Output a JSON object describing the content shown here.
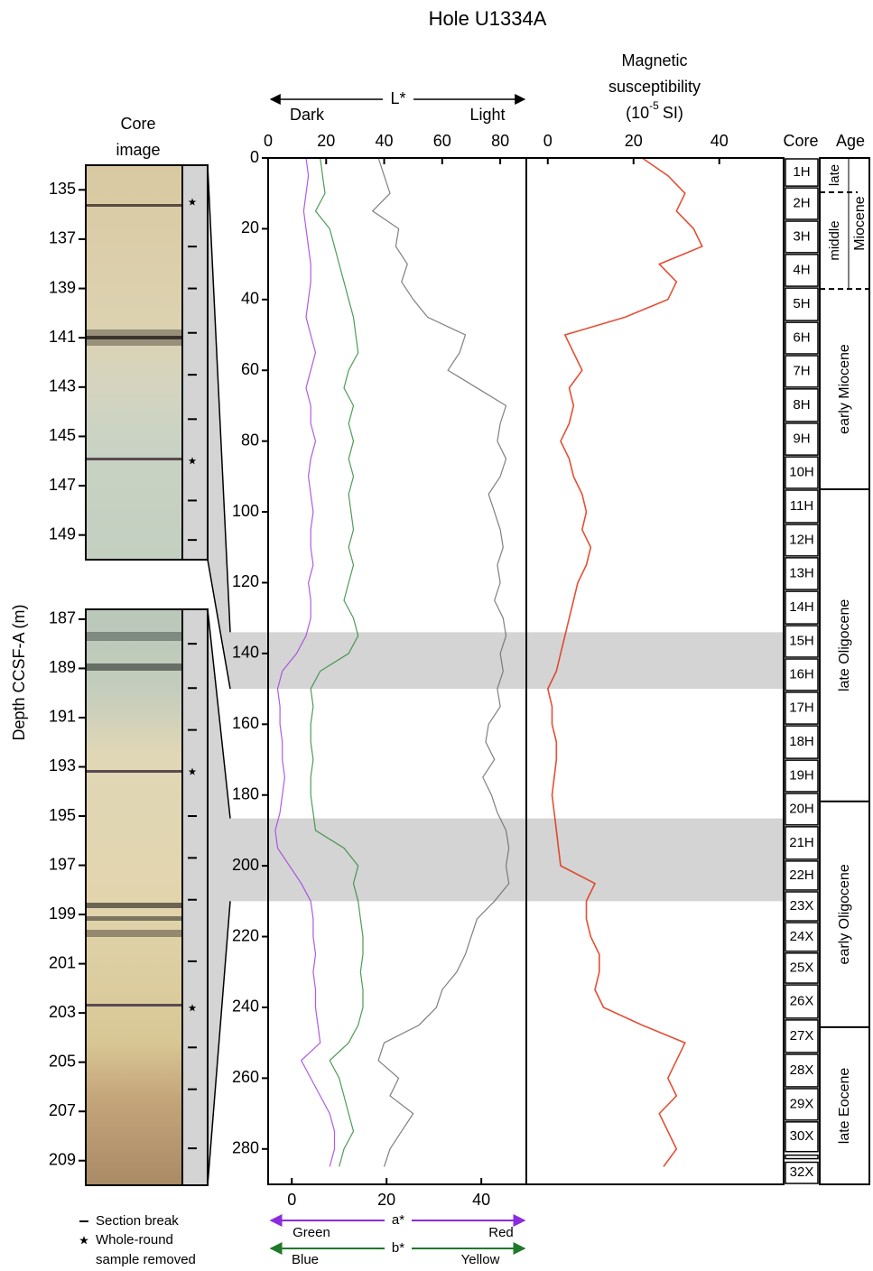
{
  "chart_data": {
    "type": "line",
    "title": "Hole U1334A",
    "ylabel": "Depth CCSF-A (m)",
    "ylim": [
      0,
      290
    ],
    "yticks": [
      0,
      20,
      40,
      60,
      80,
      100,
      120,
      140,
      160,
      180,
      200,
      220,
      240,
      260,
      280
    ],
    "depth": [
      0,
      5,
      10,
      15,
      20,
      25,
      30,
      35,
      40,
      45,
      50,
      55,
      60,
      65,
      70,
      75,
      80,
      85,
      90,
      95,
      100,
      105,
      110,
      115,
      120,
      125,
      130,
      135,
      140,
      145,
      150,
      155,
      160,
      165,
      170,
      175,
      180,
      185,
      190,
      195,
      200,
      205,
      210,
      215,
      220,
      225,
      230,
      235,
      240,
      245,
      250,
      255,
      260,
      265,
      270,
      275,
      280,
      285
    ],
    "lstar": {
      "label": "L*",
      "dark": "Dark",
      "light": "Light",
      "xlim": [
        0,
        89
      ],
      "xticks": [
        0,
        20,
        40,
        60,
        80
      ]
    },
    "ab": {
      "xlim": [
        -5,
        49.5
      ],
      "xticks": [
        0,
        20,
        40
      ],
      "a": "a*",
      "green": "Green",
      "red": "Red",
      "b": "b*",
      "blue": "Blue",
      "yellow": "Yellow"
    },
    "mag": {
      "title": [
        "Magnetic",
        "susceptibility"
      ],
      "unit": [
        "(10",
        "-5",
        "SI)"
      ],
      "xlim": [
        -5,
        55
      ],
      "xticks": [
        0,
        20,
        40
      ]
    },
    "series": [
      {
        "axis": "lstar",
        "color": "#6a6a6a",
        "values": [
          38,
          40,
          42,
          36,
          45,
          44,
          48,
          46,
          50,
          55,
          68,
          66,
          62,
          72,
          82,
          80,
          79,
          82,
          80,
          76,
          78,
          80,
          81,
          79,
          80,
          78,
          81,
          82,
          80,
          81,
          79,
          80,
          76,
          75,
          78,
          74,
          77,
          79,
          82,
          83,
          82,
          83,
          78,
          72,
          70,
          68,
          65,
          60,
          58,
          52,
          40,
          38,
          45,
          42,
          50,
          46,
          42,
          40
        ]
      },
      {
        "axis": "ab",
        "color": "#a040e0",
        "values": [
          3,
          3.5,
          3,
          2.5,
          3,
          3.5,
          4,
          4,
          3.5,
          3,
          4,
          5,
          4,
          3,
          4,
          4,
          5,
          4,
          3.5,
          4,
          4.5,
          4,
          4,
          4.5,
          3.5,
          4,
          4,
          3,
          1,
          -2,
          -3,
          -2.5,
          -2.5,
          -2,
          -2,
          -1.5,
          -2,
          -2.5,
          -3.5,
          -3,
          -0.5,
          2,
          4,
          4.5,
          4.5,
          5,
          4.5,
          5,
          5,
          5.5,
          6,
          2,
          4,
          6,
          8,
          9,
          9,
          8
        ]
      },
      {
        "axis": "ab",
        "color": "#2e8b3a",
        "values": [
          6,
          6.5,
          7,
          5,
          8,
          9,
          10,
          11,
          12,
          13,
          13.5,
          14,
          12,
          11,
          13,
          12,
          13,
          12,
          13,
          12,
          12.5,
          13,
          12,
          13,
          12,
          11,
          13,
          14,
          12,
          6,
          4,
          4.5,
          4,
          4,
          4.5,
          4,
          4,
          4.5,
          5,
          11,
          14,
          13,
          14,
          14.5,
          15,
          15,
          14.5,
          15,
          15,
          14,
          12,
          8,
          10,
          11,
          12,
          13,
          11,
          10
        ]
      },
      {
        "axis": "mag",
        "color": "#e03010",
        "values": [
          22,
          28,
          32,
          30,
          34,
          36,
          26,
          30,
          28,
          18,
          4,
          6,
          8,
          5,
          6,
          5,
          3,
          5,
          6,
          8,
          9,
          8,
          10,
          9,
          7,
          6,
          5,
          4,
          3,
          2,
          0,
          1,
          1,
          2,
          2,
          1.5,
          1,
          1.5,
          2,
          2.5,
          3,
          11,
          9,
          9,
          10,
          12,
          12,
          11,
          13,
          22,
          32,
          30,
          28,
          30,
          26,
          28,
          30,
          27
        ]
      }
    ],
    "core_image": {
      "title": [
        "Core",
        "image"
      ],
      "sections": [
        {
          "top": 134.0,
          "bottom": 150.0,
          "yticks": [
            135,
            137,
            139,
            141,
            143,
            145,
            147,
            149
          ],
          "section_breaks": [
            137.3,
            139.0,
            140.8,
            142.5,
            144.3,
            147.6,
            149.2
          ],
          "samples": [
            135.5,
            146.0
          ]
        },
        {
          "top": 186.6,
          "bottom": 210.0,
          "yticks": [
            187,
            189,
            191,
            193,
            195,
            197,
            199,
            201,
            203,
            205,
            207,
            209
          ],
          "section_breaks": [
            188.0,
            189.8,
            191.5,
            195.0,
            196.7,
            198.4,
            200.9,
            204.4,
            206.1,
            208.5
          ],
          "samples": [
            193.2,
            202.8
          ]
        }
      ]
    },
    "legend": {
      "section_break": "Section break",
      "sample": [
        "Whole-round",
        "sample removed"
      ]
    },
    "cores": {
      "title": "Core",
      "items": [
        {
          "label": "1H",
          "top": 0,
          "bottom": 8.2
        },
        {
          "label": "2H",
          "top": 8.2,
          "bottom": 17.6
        },
        {
          "label": "3H",
          "top": 17.6,
          "bottom": 27.0
        },
        {
          "label": "4H",
          "top": 27.0,
          "bottom": 36.5
        },
        {
          "label": "5H",
          "top": 36.5,
          "bottom": 46.2
        },
        {
          "label": "6H",
          "top": 46.2,
          "bottom": 55.6
        },
        {
          "label": "7H",
          "top": 55.6,
          "bottom": 65.0
        },
        {
          "label": "8H",
          "top": 65.0,
          "bottom": 74.7
        },
        {
          "label": "9H",
          "top": 74.7,
          "bottom": 84.2
        },
        {
          "label": "10H",
          "top": 84.2,
          "bottom": 93.6
        },
        {
          "label": "11H",
          "top": 93.6,
          "bottom": 103.3
        },
        {
          "label": "12H",
          "top": 103.3,
          "bottom": 112.7
        },
        {
          "label": "13H",
          "top": 112.7,
          "bottom": 122.2
        },
        {
          "label": "14H",
          "top": 122.2,
          "bottom": 131.9
        },
        {
          "label": "15H",
          "top": 131.9,
          "bottom": 141.3
        },
        {
          "label": "16H",
          "top": 141.3,
          "bottom": 150.7
        },
        {
          "label": "17H",
          "top": 150.7,
          "bottom": 160.2
        },
        {
          "label": "18H",
          "top": 160.2,
          "bottom": 169.9
        },
        {
          "label": "19H",
          "top": 169.9,
          "bottom": 179.3
        },
        {
          "label": "20H",
          "top": 179.3,
          "bottom": 188.7
        },
        {
          "label": "21H",
          "top": 188.7,
          "bottom": 198.4
        },
        {
          "label": "22H",
          "top": 198.4,
          "bottom": 207.1
        },
        {
          "label": "23X",
          "top": 207.1,
          "bottom": 215.8
        },
        {
          "label": "24X",
          "top": 215.8,
          "bottom": 224.4
        },
        {
          "label": "25X",
          "top": 224.4,
          "bottom": 233.4
        },
        {
          "label": "26X",
          "top": 233.4,
          "bottom": 243.3
        },
        {
          "label": "27X",
          "top": 243.3,
          "bottom": 253.0
        },
        {
          "label": "28X",
          "top": 253.0,
          "bottom": 262.7
        },
        {
          "label": "29X",
          "top": 262.7,
          "bottom": 272.1
        },
        {
          "label": "30X",
          "top": 272.1,
          "bottom": 281.0
        },
        {
          "label": null,
          "top": 281.5,
          "bottom": 283.0
        },
        {
          "label": "32X",
          "top": 283.5,
          "bottom": 290
        }
      ]
    },
    "age": {
      "title": "Age",
      "epochs": [
        {
          "label": "Miocene",
          "top": 0,
          "bottom": 37,
          "dashed": true,
          "subdivisions": [
            {
              "label": "late",
              "top": 0,
              "bottom": 9.7,
              "dashed": true
            },
            {
              "label": "middle",
              "top": 9.7,
              "bottom": 37
            }
          ]
        },
        {
          "label": "early Miocene",
          "top": 37,
          "bottom": 93.6
        },
        {
          "label": "late Oligocene",
          "top": 93.6,
          "bottom": 181.8
        },
        {
          "label": "early Oligocene",
          "top": 181.8,
          "bottom": 245.6
        },
        {
          "label": "late Eocene",
          "top": 245.6,
          "bottom": 290
        }
      ]
    }
  }
}
